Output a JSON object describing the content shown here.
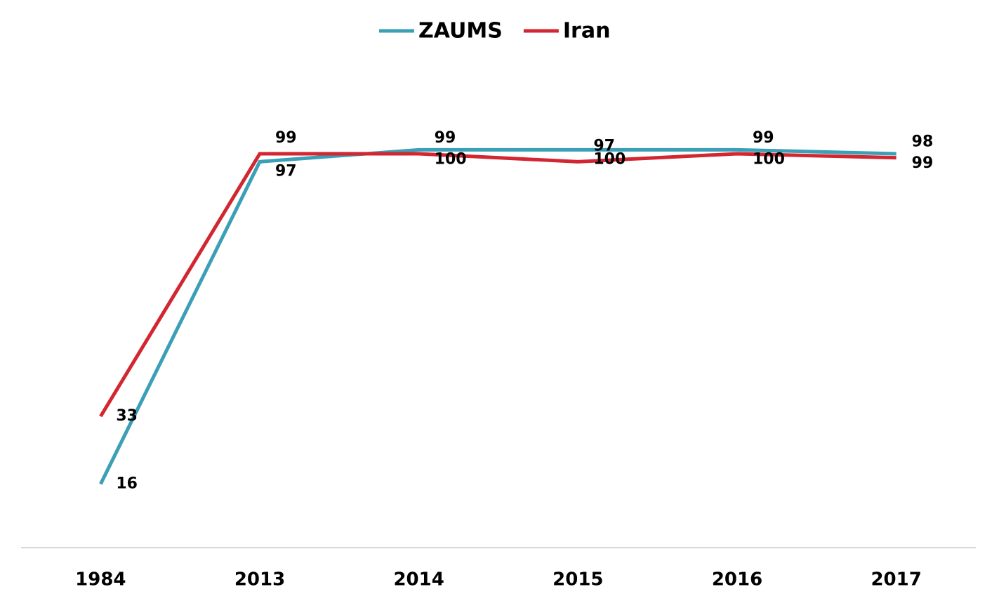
{
  "chart_data": {
    "type": "line",
    "categories": [
      "1984",
      "2013",
      "2014",
      "2015",
      "2016",
      "2017"
    ],
    "series": [
      {
        "name": "ZAUMS",
        "color": "#3b9fb6",
        "values": [
          16,
          97,
          100,
          100,
          100,
          99
        ]
      },
      {
        "name": "Iran",
        "color": "#d22630",
        "values": [
          33,
          99,
          99,
          97,
          99,
          98
        ]
      }
    ],
    "ylim": [
      0,
      120
    ],
    "legend": "top"
  }
}
